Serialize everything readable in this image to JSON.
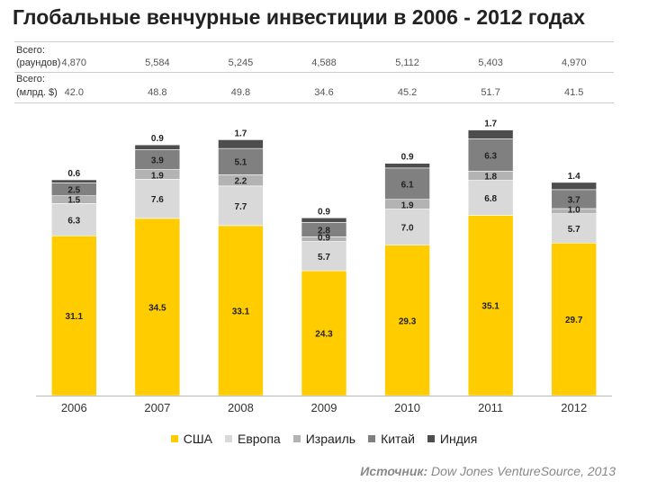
{
  "chart_data": {
    "type": "bar",
    "stacked": true,
    "title": "Глобальные венчурные инвестиции в 2006 - 2012 годах",
    "categories": [
      "2006",
      "2007",
      "2008",
      "2009",
      "2010",
      "2011",
      "2012"
    ],
    "series": [
      {
        "name": "США",
        "color": "#ffcc00",
        "values": [
          31.1,
          34.5,
          33.1,
          24.3,
          29.3,
          35.1,
          29.7
        ],
        "labels": [
          "31.1",
          "34.5",
          "33.1",
          "24.3",
          "29.3",
          "35.1",
          "29.7"
        ]
      },
      {
        "name": "Европа",
        "color": "#d9d9d9",
        "values": [
          6.3,
          7.6,
          7.7,
          5.7,
          7.0,
          6.8,
          5.7
        ],
        "labels": [
          "6.3",
          "7.6",
          "7.7",
          "5.7",
          "7.0",
          "6.8",
          "5.7"
        ]
      },
      {
        "name": "Израиль",
        "color": "#b3b3b3",
        "values": [
          1.5,
          1.9,
          2.2,
          0.9,
          1.9,
          1.8,
          1.0
        ],
        "labels": [
          "1.5",
          "1.9",
          "2.2",
          "0.9",
          "1.9",
          "1.8",
          "1.0"
        ]
      },
      {
        "name": "Китай",
        "color": "#808080",
        "values": [
          2.5,
          3.9,
          5.1,
          2.8,
          6.1,
          6.3,
          3.7
        ],
        "labels": [
          "2.5",
          "3.9",
          "5.1",
          "2.8",
          "6.1",
          "6.3",
          "3.7"
        ]
      },
      {
        "name": "Индия",
        "color": "#4d4d4d",
        "values": [
          0.6,
          0.9,
          1.7,
          0.9,
          0.9,
          1.7,
          1.4
        ],
        "labels": [
          "0.6",
          "0.9",
          "1.7",
          "0.9",
          "0.9",
          "1.7",
          "1.4"
        ]
      }
    ],
    "ylim": [
      0,
      56
    ],
    "legend_position": "bottom"
  },
  "summary": {
    "rounds_label_1": "Всего:",
    "rounds_label_2": "(раундов)",
    "rounds": [
      "4,870",
      "5,584",
      "5,245",
      "4,588",
      "5,112",
      "5,403",
      "4,970"
    ],
    "amount_label_1": "Всего:",
    "amount_label_2": "(млрд. $)",
    "amounts": [
      "42.0",
      "48.8",
      "49.8",
      "34.6",
      "45.2",
      "51.7",
      "41.5"
    ]
  },
  "source": {
    "label": "Источник:",
    "text": "Dow Jones VentureSource, 2013"
  }
}
